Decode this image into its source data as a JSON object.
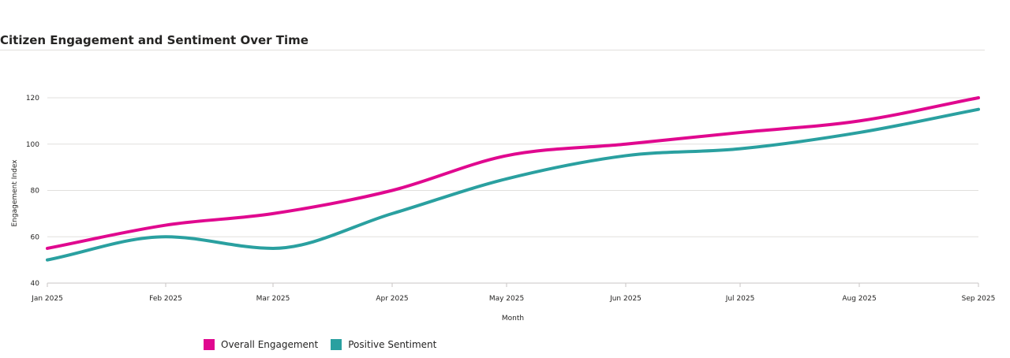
{
  "chart_data": {
    "type": "line",
    "title": "Citizen Engagement and Sentiment Over Time",
    "xlabel": "Month",
    "ylabel": "Engagement Index",
    "categories": [
      "Jan 2025",
      "Feb 2025",
      "Mar 2025",
      "Apr 2025",
      "May 2025",
      "Jun 2025",
      "Jul 2025",
      "Aug 2025",
      "Sep 2025"
    ],
    "series": [
      {
        "name": "Overall Engagement",
        "color": "#e0088f",
        "values": [
          55,
          65,
          70,
          80,
          95,
          100,
          105,
          110,
          120
        ]
      },
      {
        "name": "Positive Sentiment",
        "color": "#2aa0a0",
        "values": [
          50,
          60,
          55,
          70,
          85,
          95,
          98,
          105,
          115
        ]
      }
    ],
    "ylim": [
      40,
      120
    ],
    "yticks": [
      40,
      60,
      80,
      100,
      120
    ],
    "grid": true,
    "legend_position": "bottom-left"
  }
}
